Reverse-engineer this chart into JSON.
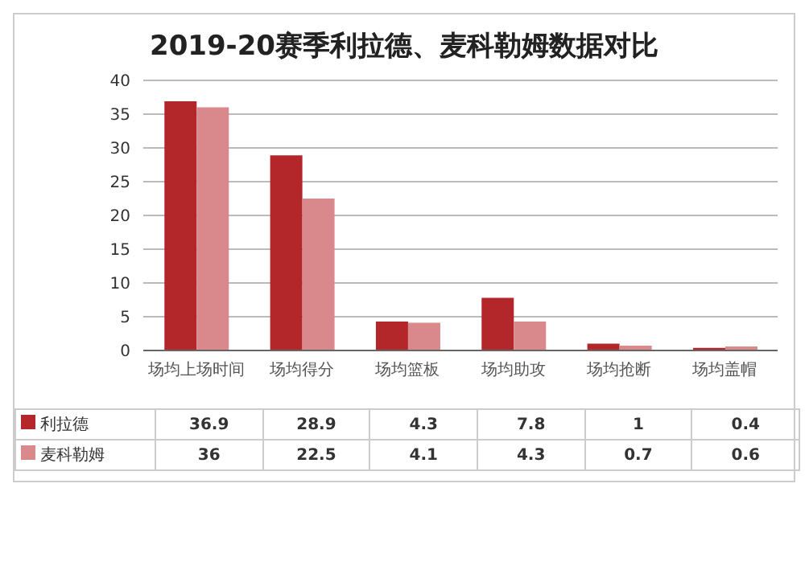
{
  "chart_data": {
    "type": "bar",
    "title": "2019-20赛季利拉德、麦科勒姆数据对比",
    "categories": [
      "场均上场时间",
      "场均得分",
      "场均篮板",
      "场均助攻",
      "场均抢断",
      "场均盖帽"
    ],
    "series": [
      {
        "name": "利拉德",
        "color": "#b3262a",
        "values": [
          36.9,
          28.9,
          4.3,
          7.8,
          1,
          0.4
        ]
      },
      {
        "name": "麦科勒姆",
        "color": "#d9898b",
        "values": [
          36,
          22.5,
          4.1,
          4.3,
          0.7,
          0.6
        ]
      }
    ],
    "ylim": [
      0,
      40
    ],
    "yticks": [
      0,
      5,
      10,
      15,
      20,
      25,
      30,
      35,
      40
    ],
    "grid": "y",
    "legend": "bottom",
    "data_labels": true
  }
}
